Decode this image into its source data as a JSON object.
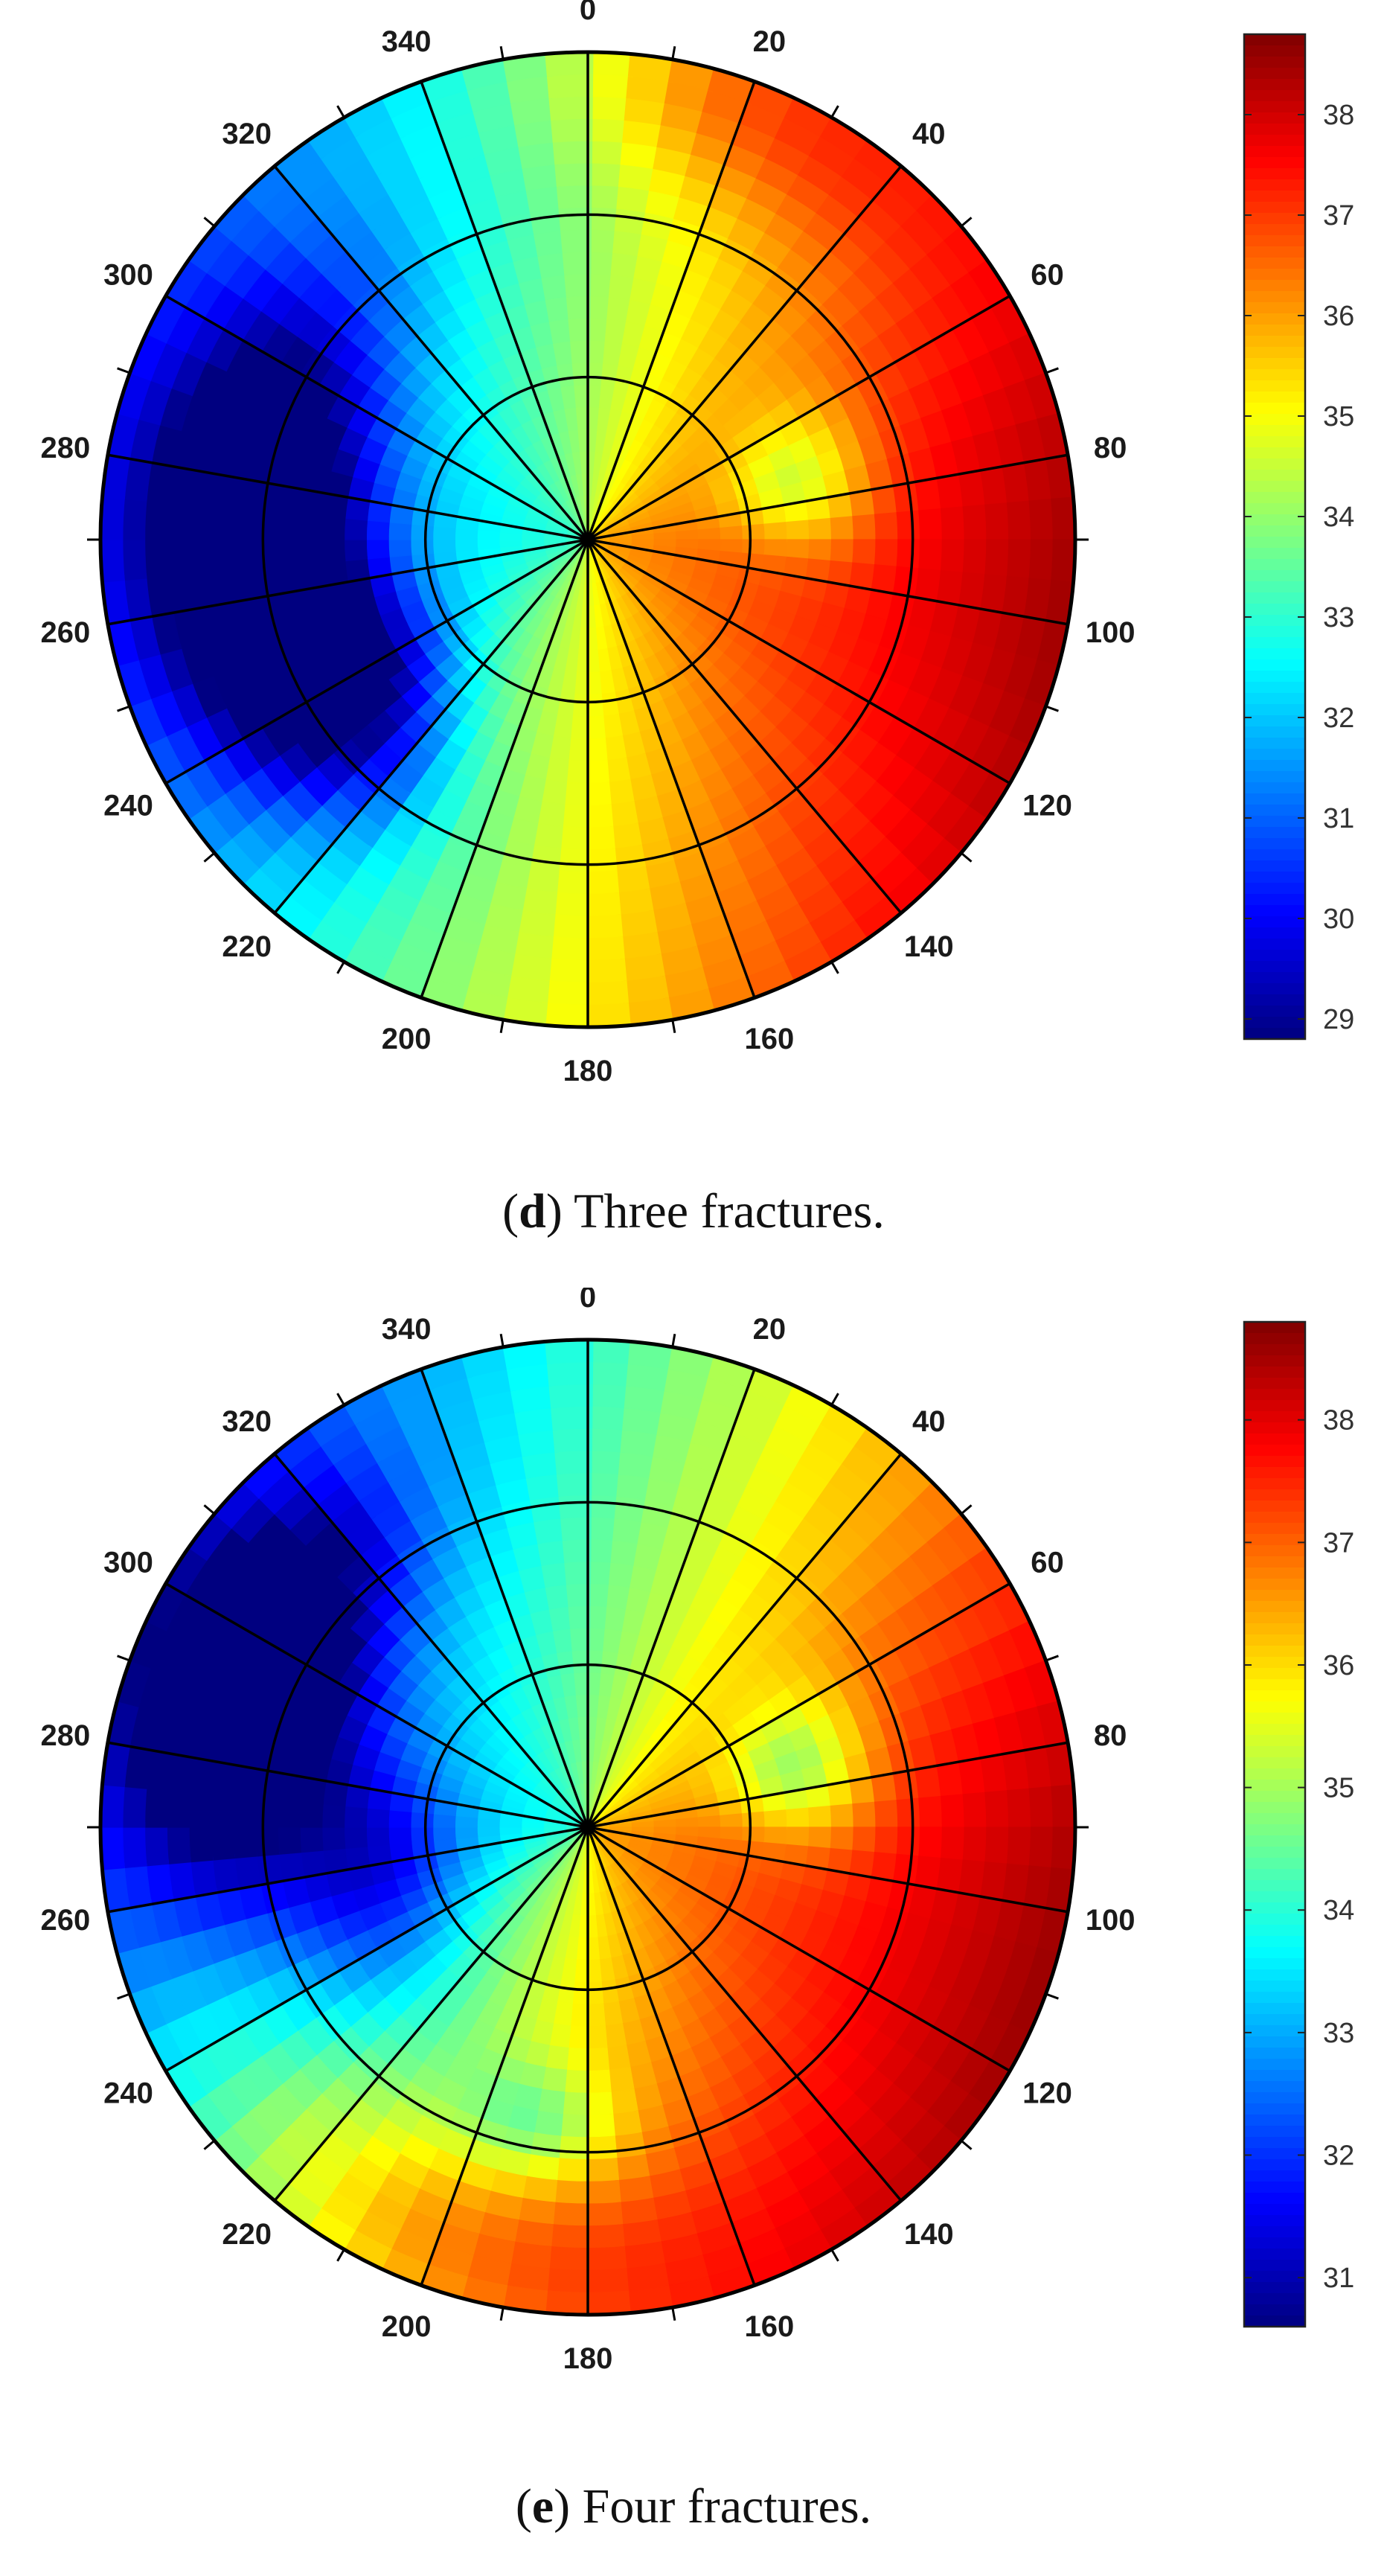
{
  "chart_data": [
    {
      "type": "heatmap",
      "projection": "polar",
      "panel_letter": "d",
      "caption": "Three fractures.",
      "angular_ticks": [
        "0",
        "20",
        "40",
        "60",
        "80",
        "100",
        "120",
        "140",
        "160",
        "180",
        "200",
        "220",
        "240",
        "260",
        "280",
        "300",
        "320",
        "340"
      ],
      "radial_rings": 3,
      "colorbar": {
        "ticks": [
          "38",
          "37",
          "36",
          "35",
          "34",
          "33",
          "32",
          "31",
          "30",
          "29"
        ],
        "range": [
          28.8,
          38.8
        ]
      },
      "value_field": {
        "base": 34.5,
        "axis_dir_deg": 100,
        "amplitude": 4.0,
        "hotspots": [
          {
            "angle_deg": 270,
            "r": 0.68,
            "spread_deg": 38,
            "spread_r": 0.22,
            "delta": -5.6
          },
          {
            "angle_deg": 238,
            "r": 0.55,
            "spread_deg": 22,
            "spread_r": 0.2,
            "delta": -3.0
          },
          {
            "angle_deg": 20,
            "r": 0.95,
            "spread_deg": 25,
            "spread_r": 0.2,
            "delta": 1.5
          },
          {
            "angle_deg": 75,
            "r": 0.45,
            "spread_deg": 18,
            "spread_r": 0.15,
            "delta": -2.2
          }
        ]
      },
      "colors": {
        "low": "#00008f",
        "high": "#800000"
      }
    },
    {
      "type": "heatmap",
      "projection": "polar",
      "panel_letter": "e",
      "caption": "Four fractures.",
      "angular_ticks": [
        "0",
        "20",
        "40",
        "60",
        "80",
        "100",
        "120",
        "140",
        "160",
        "180",
        "200",
        "220",
        "240",
        "260",
        "280",
        "300",
        "320",
        "340"
      ],
      "radial_rings": 3,
      "colorbar": {
        "ticks": [
          "38",
          "37",
          "36",
          "35",
          "34",
          "33",
          "32",
          "31"
        ],
        "range": [
          30.6,
          38.8
        ]
      },
      "value_field": {
        "base": 35.2,
        "axis_dir_deg": 110,
        "amplitude": 3.4,
        "hotspots": [
          {
            "angle_deg": 293,
            "r": 0.75,
            "spread_deg": 28,
            "spread_r": 0.2,
            "delta": -4.6
          },
          {
            "angle_deg": 260,
            "r": 0.45,
            "spread_deg": 30,
            "spread_r": 0.2,
            "delta": -2.0
          },
          {
            "angle_deg": 75,
            "r": 0.45,
            "spread_deg": 18,
            "spread_r": 0.15,
            "delta": -2.0
          },
          {
            "angle_deg": 205,
            "r": 0.9,
            "spread_deg": 40,
            "spread_r": 0.25,
            "delta": 1.5
          },
          {
            "angle_deg": 190,
            "r": 0.62,
            "spread_deg": 15,
            "spread_r": 0.12,
            "delta": -1.4
          }
        ]
      },
      "colors": {
        "low": "#00008f",
        "high": "#800000"
      }
    }
  ]
}
